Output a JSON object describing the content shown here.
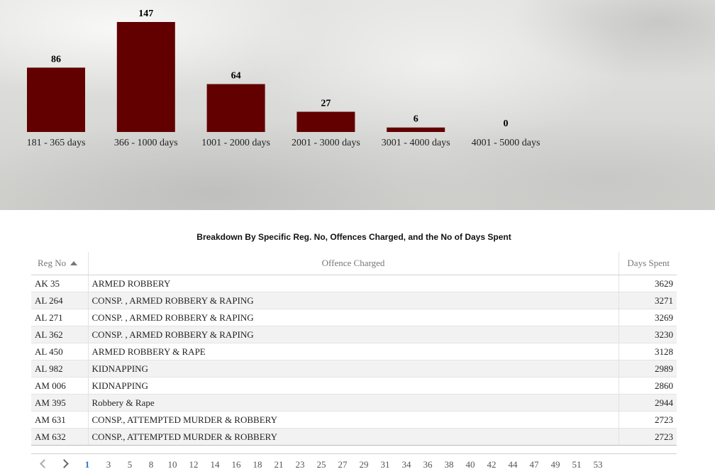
{
  "chart_data": {
    "type": "bar",
    "categories": [
      "181 - 365 days",
      "366 - 1000 days",
      "1001 - 2000 days",
      "2001 - 3000 days",
      "3001 - 4000 days",
      "4001 - 5000 days"
    ],
    "values": [
      86,
      147,
      64,
      27,
      6,
      0
    ],
    "bar_color": "#620000",
    "grid": false,
    "legend": "none",
    "ylim": [
      0,
      147
    ]
  },
  "table": {
    "title": "Breakdown By Specific Reg. No, Offences Charged, and the No of Days Spent",
    "columns": [
      "Reg No",
      "Offence Charged",
      "Days Spent"
    ],
    "sort": "ascending",
    "rows": [
      [
        "AK 35",
        "ARMED ROBBERY",
        "3629"
      ],
      [
        "AL 264",
        "CONSP. , ARMED ROBBERY & RAPING",
        "3271"
      ],
      [
        "AL 271",
        "CONSP. , ARMED ROBBERY & RAPING",
        "3269"
      ],
      [
        "AL 362",
        "CONSP. , ARMED ROBBERY & RAPING",
        "3230"
      ],
      [
        "AL 450",
        "ARMED ROBBERY & RAPE",
        "3128"
      ],
      [
        "AL 982",
        "KIDNAPPING",
        "2989"
      ],
      [
        "AM 006",
        "KIDNAPPING",
        "2860"
      ],
      [
        "AM 395",
        "Robbery & Rape",
        "2944"
      ],
      [
        "AM 631",
        "CONSP., ATTEMPTED MURDER & ROBBERY",
        "2723"
      ],
      [
        "AM 632",
        "CONSP., ATTEMPTED MURDER & ROBBERY",
        "2723"
      ]
    ]
  },
  "pagination": {
    "prev_icon": "chevron-left-icon",
    "next_icon": "chevron-right-icon",
    "current": "1",
    "pages": [
      "1",
      "3",
      "5",
      "8",
      "10",
      "12",
      "14",
      "16",
      "18",
      "21",
      "23",
      "25",
      "27",
      "29",
      "31",
      "34",
      "36",
      "38",
      "40",
      "42",
      "44",
      "47",
      "49",
      "51",
      "53"
    ]
  }
}
